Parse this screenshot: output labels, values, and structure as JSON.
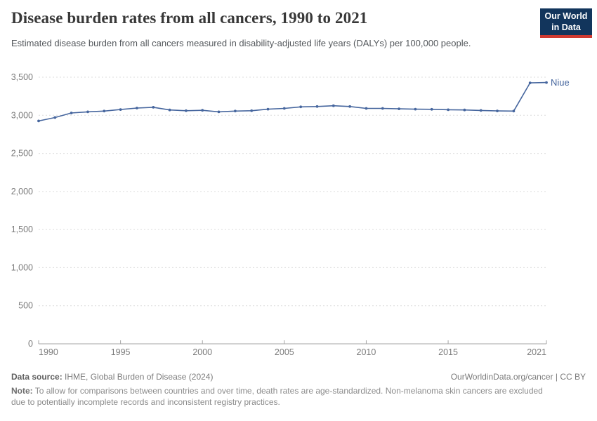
{
  "chart_data": {
    "type": "line",
    "title": "Disease burden rates from all cancers, 1990 to 2021",
    "subtitle": "Estimated disease burden from all cancers measured in disability-adjusted life years (DALYs) per 100,000 people.",
    "xlabel": "",
    "ylabel": "",
    "xlim": [
      1990,
      2021
    ],
    "ylim": [
      0,
      3500
    ],
    "x_ticks": [
      1990,
      1995,
      2000,
      2005,
      2010,
      2015,
      2021
    ],
    "y_ticks": [
      0,
      500,
      1000,
      1500,
      2000,
      2500,
      3000,
      3500
    ],
    "grid": "horizontal-dashed",
    "legend_position": "end-of-line-label",
    "x": [
      1990,
      1991,
      1992,
      1993,
      1994,
      1995,
      1996,
      1997,
      1998,
      1999,
      2000,
      2001,
      2002,
      2003,
      2004,
      2005,
      2006,
      2007,
      2008,
      2009,
      2010,
      2011,
      2012,
      2013,
      2014,
      2015,
      2016,
      2017,
      2018,
      2019,
      2020,
      2021
    ],
    "series": [
      {
        "name": "Niue",
        "color": "#46669e",
        "values": [
          2925,
          2970,
          3030,
          3045,
          3055,
          3075,
          3095,
          3105,
          3070,
          3060,
          3065,
          3045,
          3055,
          3060,
          3080,
          3090,
          3110,
          3115,
          3125,
          3115,
          3090,
          3090,
          3085,
          3080,
          3078,
          3073,
          3070,
          3063,
          3057,
          3055,
          3425,
          3430
        ]
      }
    ]
  },
  "logo": {
    "line1": "Our World",
    "line2": "in Data",
    "bg_color": "#12355c",
    "stripe_color": "#cf3a31"
  },
  "footer": {
    "source_label": "Data source:",
    "source_text": " IHME, Global Burden of Disease (2024)",
    "rights": "OurWorldinData.org/cancer | CC BY",
    "note_label": "Note:",
    "note_text": " To allow for comparisons between countries and over time, death rates are age-standardized. Non-melanoma skin cancers are excluded due to potentially incomplete records and inconsistent registry practices."
  },
  "style": {
    "grid_color": "#dcdcdc",
    "axis_color": "#a5a5a5",
    "tick_label_color": "#7b7b7b"
  }
}
